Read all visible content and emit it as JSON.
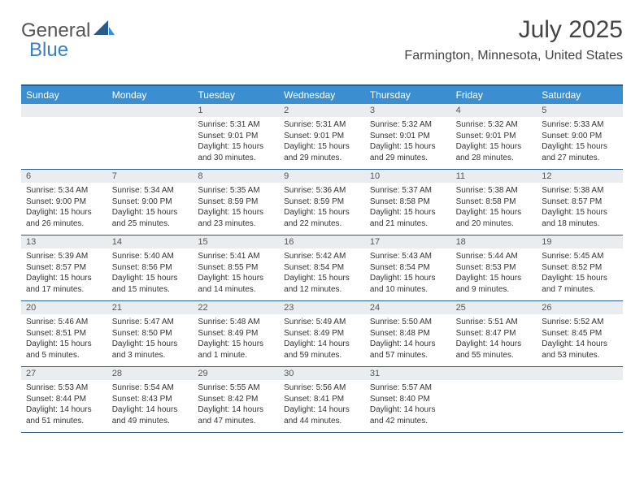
{
  "logo": {
    "text_general": "General",
    "text_blue": "Blue"
  },
  "header": {
    "month_title": "July 2025",
    "location": "Farmington, Minnesota, United States"
  },
  "colors": {
    "header_bg": "#3b8ed0",
    "header_border": "#2a5b8a",
    "daynum_bg": "#e9edef",
    "text_dark": "#333333",
    "text_mid": "#555555",
    "logo_blue": "#3b7ec4"
  },
  "day_names": [
    "Sunday",
    "Monday",
    "Tuesday",
    "Wednesday",
    "Thursday",
    "Friday",
    "Saturday"
  ],
  "weeks": [
    [
      {
        "n": "",
        "sunrise": "",
        "sunset": "",
        "daylight": ""
      },
      {
        "n": "",
        "sunrise": "",
        "sunset": "",
        "daylight": ""
      },
      {
        "n": "1",
        "sunrise": "Sunrise: 5:31 AM",
        "sunset": "Sunset: 9:01 PM",
        "daylight": "Daylight: 15 hours and 30 minutes."
      },
      {
        "n": "2",
        "sunrise": "Sunrise: 5:31 AM",
        "sunset": "Sunset: 9:01 PM",
        "daylight": "Daylight: 15 hours and 29 minutes."
      },
      {
        "n": "3",
        "sunrise": "Sunrise: 5:32 AM",
        "sunset": "Sunset: 9:01 PM",
        "daylight": "Daylight: 15 hours and 29 minutes."
      },
      {
        "n": "4",
        "sunrise": "Sunrise: 5:32 AM",
        "sunset": "Sunset: 9:01 PM",
        "daylight": "Daylight: 15 hours and 28 minutes."
      },
      {
        "n": "5",
        "sunrise": "Sunrise: 5:33 AM",
        "sunset": "Sunset: 9:00 PM",
        "daylight": "Daylight: 15 hours and 27 minutes."
      }
    ],
    [
      {
        "n": "6",
        "sunrise": "Sunrise: 5:34 AM",
        "sunset": "Sunset: 9:00 PM",
        "daylight": "Daylight: 15 hours and 26 minutes."
      },
      {
        "n": "7",
        "sunrise": "Sunrise: 5:34 AM",
        "sunset": "Sunset: 9:00 PM",
        "daylight": "Daylight: 15 hours and 25 minutes."
      },
      {
        "n": "8",
        "sunrise": "Sunrise: 5:35 AM",
        "sunset": "Sunset: 8:59 PM",
        "daylight": "Daylight: 15 hours and 23 minutes."
      },
      {
        "n": "9",
        "sunrise": "Sunrise: 5:36 AM",
        "sunset": "Sunset: 8:59 PM",
        "daylight": "Daylight: 15 hours and 22 minutes."
      },
      {
        "n": "10",
        "sunrise": "Sunrise: 5:37 AM",
        "sunset": "Sunset: 8:58 PM",
        "daylight": "Daylight: 15 hours and 21 minutes."
      },
      {
        "n": "11",
        "sunrise": "Sunrise: 5:38 AM",
        "sunset": "Sunset: 8:58 PM",
        "daylight": "Daylight: 15 hours and 20 minutes."
      },
      {
        "n": "12",
        "sunrise": "Sunrise: 5:38 AM",
        "sunset": "Sunset: 8:57 PM",
        "daylight": "Daylight: 15 hours and 18 minutes."
      }
    ],
    [
      {
        "n": "13",
        "sunrise": "Sunrise: 5:39 AM",
        "sunset": "Sunset: 8:57 PM",
        "daylight": "Daylight: 15 hours and 17 minutes."
      },
      {
        "n": "14",
        "sunrise": "Sunrise: 5:40 AM",
        "sunset": "Sunset: 8:56 PM",
        "daylight": "Daylight: 15 hours and 15 minutes."
      },
      {
        "n": "15",
        "sunrise": "Sunrise: 5:41 AM",
        "sunset": "Sunset: 8:55 PM",
        "daylight": "Daylight: 15 hours and 14 minutes."
      },
      {
        "n": "16",
        "sunrise": "Sunrise: 5:42 AM",
        "sunset": "Sunset: 8:54 PM",
        "daylight": "Daylight: 15 hours and 12 minutes."
      },
      {
        "n": "17",
        "sunrise": "Sunrise: 5:43 AM",
        "sunset": "Sunset: 8:54 PM",
        "daylight": "Daylight: 15 hours and 10 minutes."
      },
      {
        "n": "18",
        "sunrise": "Sunrise: 5:44 AM",
        "sunset": "Sunset: 8:53 PM",
        "daylight": "Daylight: 15 hours and 9 minutes."
      },
      {
        "n": "19",
        "sunrise": "Sunrise: 5:45 AM",
        "sunset": "Sunset: 8:52 PM",
        "daylight": "Daylight: 15 hours and 7 minutes."
      }
    ],
    [
      {
        "n": "20",
        "sunrise": "Sunrise: 5:46 AM",
        "sunset": "Sunset: 8:51 PM",
        "daylight": "Daylight: 15 hours and 5 minutes."
      },
      {
        "n": "21",
        "sunrise": "Sunrise: 5:47 AM",
        "sunset": "Sunset: 8:50 PM",
        "daylight": "Daylight: 15 hours and 3 minutes."
      },
      {
        "n": "22",
        "sunrise": "Sunrise: 5:48 AM",
        "sunset": "Sunset: 8:49 PM",
        "daylight": "Daylight: 15 hours and 1 minute."
      },
      {
        "n": "23",
        "sunrise": "Sunrise: 5:49 AM",
        "sunset": "Sunset: 8:49 PM",
        "daylight": "Daylight: 14 hours and 59 minutes."
      },
      {
        "n": "24",
        "sunrise": "Sunrise: 5:50 AM",
        "sunset": "Sunset: 8:48 PM",
        "daylight": "Daylight: 14 hours and 57 minutes."
      },
      {
        "n": "25",
        "sunrise": "Sunrise: 5:51 AM",
        "sunset": "Sunset: 8:47 PM",
        "daylight": "Daylight: 14 hours and 55 minutes."
      },
      {
        "n": "26",
        "sunrise": "Sunrise: 5:52 AM",
        "sunset": "Sunset: 8:45 PM",
        "daylight": "Daylight: 14 hours and 53 minutes."
      }
    ],
    [
      {
        "n": "27",
        "sunrise": "Sunrise: 5:53 AM",
        "sunset": "Sunset: 8:44 PM",
        "daylight": "Daylight: 14 hours and 51 minutes."
      },
      {
        "n": "28",
        "sunrise": "Sunrise: 5:54 AM",
        "sunset": "Sunset: 8:43 PM",
        "daylight": "Daylight: 14 hours and 49 minutes."
      },
      {
        "n": "29",
        "sunrise": "Sunrise: 5:55 AM",
        "sunset": "Sunset: 8:42 PM",
        "daylight": "Daylight: 14 hours and 47 minutes."
      },
      {
        "n": "30",
        "sunrise": "Sunrise: 5:56 AM",
        "sunset": "Sunset: 8:41 PM",
        "daylight": "Daylight: 14 hours and 44 minutes."
      },
      {
        "n": "31",
        "sunrise": "Sunrise: 5:57 AM",
        "sunset": "Sunset: 8:40 PM",
        "daylight": "Daylight: 14 hours and 42 minutes."
      },
      {
        "n": "",
        "sunrise": "",
        "sunset": "",
        "daylight": ""
      },
      {
        "n": "",
        "sunrise": "",
        "sunset": "",
        "daylight": ""
      }
    ]
  ]
}
